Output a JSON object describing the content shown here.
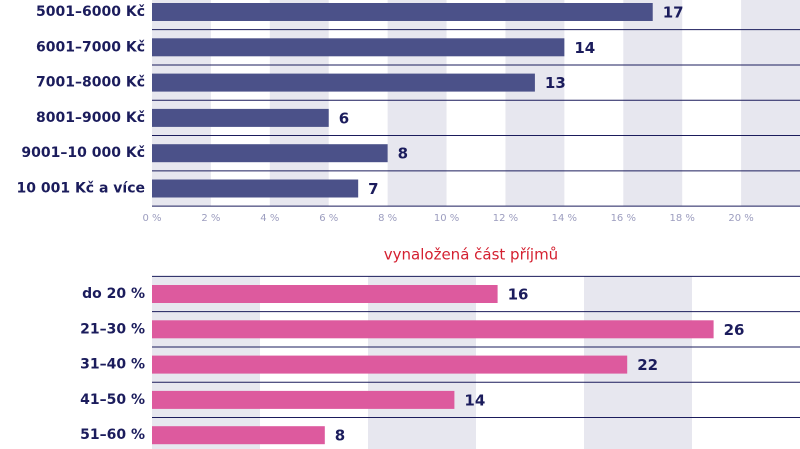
{
  "chart_data": [
    {
      "type": "bar",
      "orientation": "horizontal",
      "categories": [
        "5001–6000 Kč",
        "6001–7000 Kč",
        "7001–8000 Kč",
        "8001–9000 Kč",
        "9001–10 000 Kč",
        "10 001 Kč a více"
      ],
      "values": [
        17,
        14,
        13,
        6,
        8,
        7
      ],
      "color": "#4b5189",
      "xlim": [
        0,
        22
      ],
      "xticks": [
        {
          "value": 0,
          "label": "0 %"
        },
        {
          "value": 2,
          "label": "2 %"
        },
        {
          "value": 4,
          "label": "4 %"
        },
        {
          "value": 6,
          "label": "6 %"
        },
        {
          "value": 8,
          "label": "8 %"
        },
        {
          "value": 10,
          "label": "10 %"
        },
        {
          "value": 12,
          "label": "12 %"
        },
        {
          "value": 14,
          "label": "14 %"
        },
        {
          "value": 16,
          "label": "16 %"
        },
        {
          "value": 18,
          "label": "18 %"
        },
        {
          "value": 20,
          "label": "20 %"
        }
      ]
    },
    {
      "type": "bar",
      "orientation": "horizontal",
      "title": "vynaložená část příjmů",
      "categories": [
        "do 20 %",
        "21–30 %",
        "31–40 %",
        "41–50 %",
        "51–60 %"
      ],
      "values": [
        16,
        26,
        22,
        14,
        8
      ],
      "color": "#dd5a9e",
      "xlim": [
        0,
        30
      ]
    }
  ]
}
